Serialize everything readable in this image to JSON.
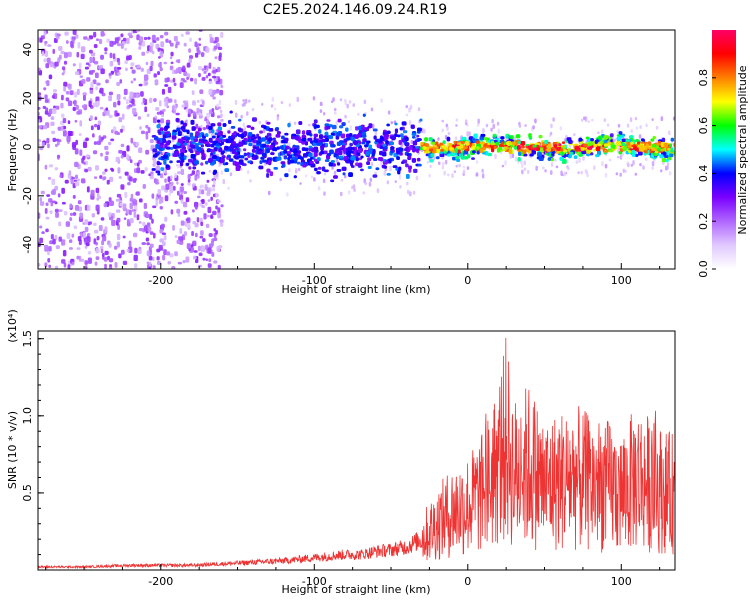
{
  "title": "C2E5.2024.146.09.24.R19",
  "chart_data": [
    {
      "type": "heatmap",
      "xlabel": "Height of straight line (km)",
      "ylabel": "Frequency (Hz)",
      "xlim": [
        -280,
        135
      ],
      "ylim": [
        -50,
        48
      ],
      "x_ticks": [
        -200,
        -100,
        0,
        100
      ],
      "y_ticks": [
        -40,
        -20,
        0,
        20,
        40
      ],
      "grid": false,
      "colorbar": {
        "label": "Normalized spectral amplitude",
        "range": [
          0,
          1
        ],
        "ticks": [
          0.0,
          0.2,
          0.4,
          0.6,
          0.8
        ],
        "colormap": [
          "#ffffff",
          "#e0c8ff",
          "#b066ff",
          "#7a00ff",
          "#0000ff",
          "#00ffff",
          "#00ff00",
          "#ffff00",
          "#ff8000",
          "#ff0000",
          "#ff0066"
        ]
      },
      "description_regions": [
        {
          "x_range": [
            -280,
            -165
          ],
          "freq_range": [
            -50,
            48
          ],
          "amplitude": 0.05
        },
        {
          "x_range": [
            -200,
            -30
          ],
          "freq_range": [
            -10,
            10
          ],
          "amplitude": 0.3
        },
        {
          "x_range": [
            -30,
            135
          ],
          "freq_range": [
            -3,
            4
          ],
          "amplitude": 0.7
        }
      ]
    },
    {
      "type": "line",
      "xlabel": "Height of straight line (km)",
      "ylabel": "SNR (10 * v/v)",
      "y_multiplier": "(x10⁴)",
      "xlim": [
        -280,
        135
      ],
      "ylim": [
        0,
        1.55
      ],
      "x_ticks": [
        -200,
        -100,
        0,
        100
      ],
      "y_ticks": [
        0.5,
        1.0,
        1.5
      ],
      "color": "#ee3333",
      "series": [
        {
          "x": [
            -280,
            -250,
            -220,
            -200,
            -180,
            -160,
            -140,
            -120,
            -100,
            -90,
            -80,
            -70,
            -60,
            -50,
            -40,
            -30,
            -20,
            -10,
            0,
            10,
            20,
            25,
            30,
            40,
            50,
            60,
            70,
            80,
            90,
            100,
            110,
            120,
            130
          ],
          "values": [
            0.02,
            0.02,
            0.03,
            0.03,
            0.03,
            0.04,
            0.05,
            0.06,
            0.08,
            0.09,
            0.1,
            0.1,
            0.12,
            0.13,
            0.15,
            0.2,
            0.3,
            0.38,
            0.42,
            0.5,
            0.7,
            0.85,
            0.62,
            0.68,
            0.55,
            0.58,
            0.6,
            0.56,
            0.55,
            0.5,
            0.6,
            0.55,
            0.5
          ]
        }
      ]
    }
  ]
}
